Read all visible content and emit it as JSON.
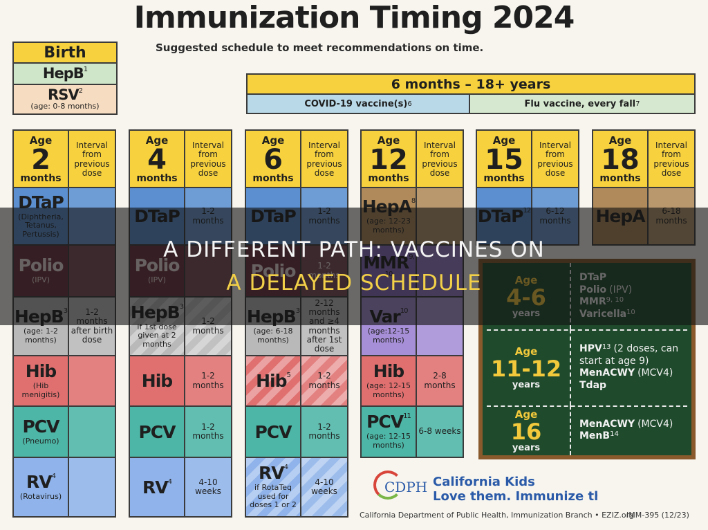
{
  "header": {
    "title": "Immunization Timing 2024",
    "subtitle": "Suggested schedule to meet recommendations on time."
  },
  "birth": {
    "label": "Birth",
    "vaccines": [
      {
        "name": "HepB",
        "sup": "1",
        "color": "#cfe6c8"
      },
      {
        "name": "RSV",
        "sup": "2",
        "note": "(age: 0-8 months)",
        "color": "#f6dcc0"
      }
    ]
  },
  "ongoing": {
    "range": "6 months – 18+ years",
    "items": [
      {
        "name": "COVID-19 vaccine(s)",
        "sup": "6",
        "color": "#b9d9e8"
      },
      {
        "name": "Flu vaccine, every fall",
        "sup": "7",
        "color": "#d6e8cf"
      }
    ]
  },
  "columns": [
    {
      "age_word": "Age",
      "age": "2",
      "unit": "months",
      "interval_header": "Interval from previous dose",
      "rows": [
        {
          "name": "DTaP",
          "note": "(Diphtheria, Tetanus, Pertussis)",
          "color": "#5b8fd0"
        },
        {
          "name": "Polio",
          "note": "(IPV)",
          "color": "#6e3440"
        },
        {
          "name": "HepB",
          "sup": "3",
          "note": "(age: 1-2 months)",
          "interval": "1-2 months after birth dose",
          "color": "#b9b9b9"
        },
        {
          "name": "Hib",
          "note": "(Hib menigitis)",
          "color": "#e07070"
        },
        {
          "name": "PCV",
          "note": "(Pneumo)",
          "color": "#4db6a6"
        },
        {
          "name": "RV",
          "sup": "4",
          "note": "(Rotavirus)",
          "color": "#8fb3ea"
        }
      ]
    },
    {
      "age_word": "Age",
      "age": "4",
      "unit": "months",
      "interval_header": "Interval from previous dose",
      "rows": [
        {
          "name": "DTaP",
          "interval": "1-2 months",
          "color": "#5b8fd0"
        },
        {
          "name": "Polio",
          "note": "(IPV)",
          "color": "#6e3440"
        },
        {
          "name": "HepB",
          "sup": "3",
          "note": "if 1st dose given at 2 months",
          "interval": "1-2 months",
          "color": "#b9b9b9",
          "striped": true
        },
        {
          "name": "Hib",
          "interval": "1-2 months",
          "color": "#e07070"
        },
        {
          "name": "PCV",
          "interval": "1-2 months",
          "color": "#4db6a6"
        },
        {
          "name": "RV",
          "sup": "4",
          "interval": "4-10 weeks",
          "color": "#8fb3ea"
        }
      ]
    },
    {
      "age_word": "Age",
      "age": "6",
      "unit": "months",
      "interval_header": "Interval from previous dose",
      "rows": [
        {
          "name": "DTaP",
          "interval": "1-2 months",
          "color": "#5b8fd0"
        },
        {
          "name": "Polio",
          "interval": "1-2 months",
          "color": "#6e3440"
        },
        {
          "name": "HepB",
          "sup": "3",
          "note": "(age: 6-18 months)",
          "interval": "2-12 months and ≥4 months after 1st dose",
          "color": "#b9b9b9"
        },
        {
          "name": "Hib",
          "sup": "5",
          "interval": "1-2 months",
          "color": "#e07070",
          "striped": true
        },
        {
          "name": "PCV",
          "interval": "1-2 months",
          "color": "#4db6a6"
        },
        {
          "name": "RV",
          "sup": "4",
          "note": "if RotaTeq used for doses 1 or 2",
          "interval": "4-10 weeks",
          "color": "#8fb3ea",
          "striped": true
        }
      ]
    },
    {
      "age_word": "Age",
      "age": "12",
      "unit": "months",
      "interval_header": "Interval from previous dose",
      "rows": [
        {
          "name": "HepA",
          "sup": "8",
          "note": "(age: 12-23 months)",
          "color": "#b08a5a"
        },
        {
          "name": "MMR",
          "sup": "9, 10",
          "color": "#8a6cc0"
        },
        {
          "name": "Var",
          "sup": "10",
          "note": "(age:12-15 months)",
          "color": "#a68fd6"
        },
        {
          "name": "Hib",
          "note": "(age: 12-15 months)",
          "interval": "2-8 months",
          "color": "#e07070"
        },
        {
          "name": "PCV",
          "sup": "11",
          "note": "(age: 12-15 months)",
          "interval": "6-8 weeks",
          "color": "#4db6a6"
        }
      ]
    },
    {
      "age_word": "Age",
      "age": "15",
      "unit": "months",
      "interval_header": "Interval from previous dose",
      "rows": [
        {
          "name": "DTaP",
          "sup": "12",
          "interval": "6-12 months",
          "color": "#5b8fd0"
        }
      ]
    },
    {
      "age_word": "Age",
      "age": "18",
      "unit": "months",
      "interval_header": "Interval from previous dose",
      "rows": [
        {
          "name": "HepA",
          "interval": "6-18 months",
          "color": "#b08a5a"
        }
      ]
    }
  ],
  "chalkboard": {
    "sections": [
      {
        "age_word": "Age",
        "age": "4-6",
        "unit": "years",
        "vaccines": [
          {
            "name": "DTaP"
          },
          {
            "name": "Polio",
            "detail": "(IPV)"
          },
          {
            "name": "MMR",
            "sup": "9, 10"
          },
          {
            "name": "Varicella",
            "sup": "10"
          }
        ]
      },
      {
        "age_word": "Age",
        "age": "11-12",
        "unit": "years",
        "vaccines": [
          {
            "name": "HPV",
            "sup": "13",
            "detail": "(2 doses, can start at age 9)"
          },
          {
            "name": "MenACWY",
            "detail": "(MCV4)"
          },
          {
            "name": "Tdap"
          }
        ]
      },
      {
        "age_word": "Age",
        "age": "16",
        "unit": "years",
        "vaccines": [
          {
            "name": "MenACWY",
            "detail": "(MCV4)"
          },
          {
            "name": "MenB",
            "sup": "14"
          }
        ]
      }
    ]
  },
  "logo": {
    "mark": "CDPH",
    "line1": "California Kids",
    "line2": "Love them. Immunize them"
  },
  "footer": {
    "org": "California Department of Public Health, Immunization Branch • EZIZ.org",
    "code": "IMM-395 (12/23)"
  },
  "overlay": {
    "lines": [
      "A DIFFERENT PATH: VACCINES ON",
      "A DELAYED SCHEDULE"
    ]
  }
}
